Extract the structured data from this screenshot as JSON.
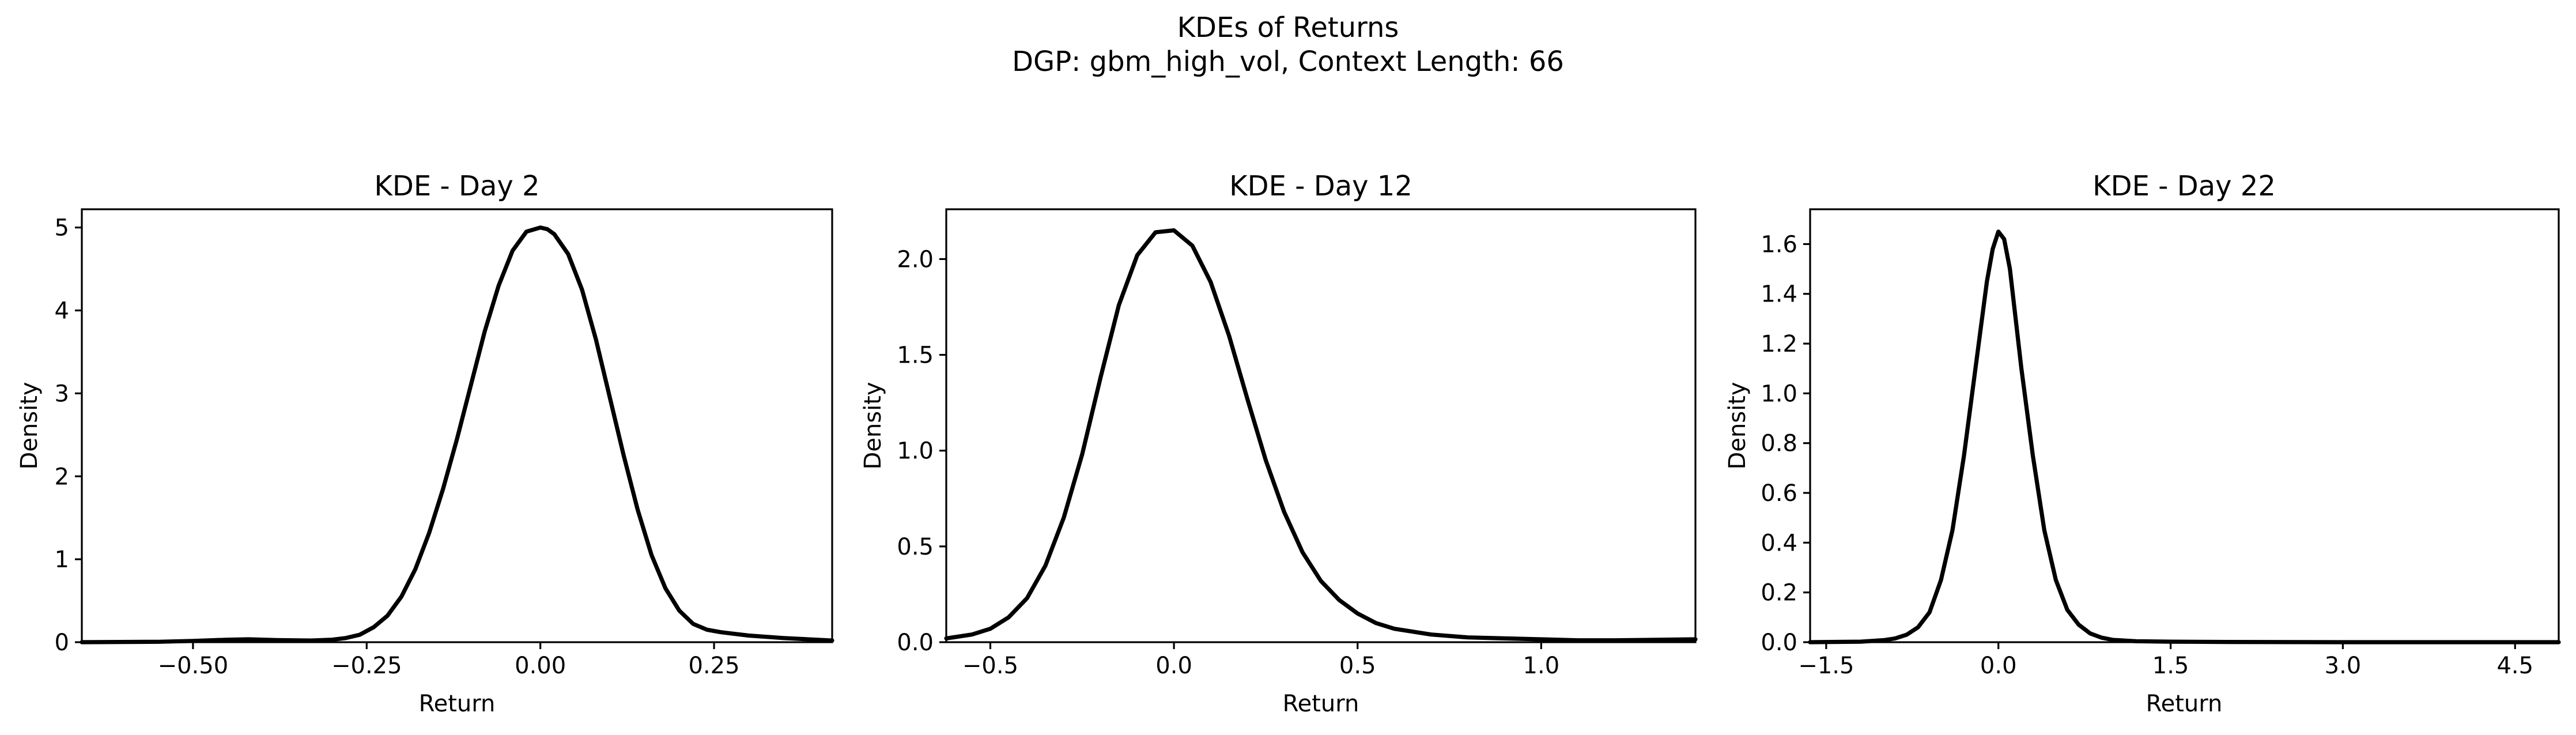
{
  "figure": {
    "suptitle_line1": "KDEs of Returns",
    "suptitle_line2": "DGP: gbm_high_vol, Context Length: 66"
  },
  "chart_data": [
    {
      "type": "line",
      "title": "KDE - Day 2",
      "xlabel": "Return",
      "ylabel": "Density",
      "xlim": [
        -0.66,
        0.42
      ],
      "ylim": [
        0,
        5.22
      ],
      "xticks": [
        -0.5,
        -0.25,
        0.0,
        0.25
      ],
      "xtick_labels": [
        "−0.50",
        "−0.25",
        "0.00",
        "0.25"
      ],
      "yticks": [
        0,
        1,
        2,
        3,
        4,
        5
      ],
      "ytick_labels": [
        "0",
        "1",
        "2",
        "3",
        "4",
        "5"
      ],
      "grid": false,
      "series": [
        {
          "color": "#000000",
          "x": [
            -0.66,
            -0.55,
            -0.5,
            -0.45,
            -0.42,
            -0.38,
            -0.33,
            -0.3,
            -0.28,
            -0.26,
            -0.24,
            -0.22,
            -0.2,
            -0.18,
            -0.16,
            -0.14,
            -0.12,
            -0.1,
            -0.08,
            -0.06,
            -0.04,
            -0.02,
            0.0,
            0.01,
            0.02,
            0.04,
            0.06,
            0.08,
            0.1,
            0.12,
            0.14,
            0.16,
            0.18,
            0.2,
            0.22,
            0.24,
            0.26,
            0.3,
            0.35,
            0.42
          ],
          "y": [
            0.0,
            0.005,
            0.015,
            0.03,
            0.035,
            0.025,
            0.02,
            0.03,
            0.05,
            0.09,
            0.18,
            0.32,
            0.55,
            0.88,
            1.32,
            1.85,
            2.45,
            3.1,
            3.75,
            4.3,
            4.72,
            4.95,
            5.0,
            4.98,
            4.92,
            4.68,
            4.25,
            3.65,
            2.95,
            2.25,
            1.6,
            1.05,
            0.65,
            0.38,
            0.22,
            0.15,
            0.12,
            0.08,
            0.05,
            0.02
          ]
        }
      ]
    },
    {
      "type": "line",
      "title": "KDE - Day 12",
      "xlabel": "Return",
      "ylabel": "Density",
      "xlim": [
        -0.62,
        1.42
      ],
      "ylim": [
        0,
        2.26
      ],
      "xticks": [
        -0.5,
        0.0,
        0.5,
        1.0
      ],
      "xtick_labels": [
        "−0.5",
        "0.0",
        "0.5",
        "1.0"
      ],
      "yticks": [
        0.0,
        0.5,
        1.0,
        1.5,
        2.0
      ],
      "ytick_labels": [
        "0.0",
        "0.5",
        "1.0",
        "1.5",
        "2.0"
      ],
      "grid": false,
      "series": [
        {
          "color": "#000000",
          "x": [
            -0.62,
            -0.55,
            -0.5,
            -0.45,
            -0.4,
            -0.35,
            -0.3,
            -0.25,
            -0.2,
            -0.15,
            -0.1,
            -0.05,
            0.0,
            0.05,
            0.1,
            0.15,
            0.2,
            0.25,
            0.3,
            0.35,
            0.4,
            0.45,
            0.5,
            0.55,
            0.6,
            0.7,
            0.8,
            0.9,
            1.0,
            1.1,
            1.2,
            1.3,
            1.42
          ],
          "y": [
            0.02,
            0.04,
            0.07,
            0.13,
            0.23,
            0.4,
            0.65,
            0.98,
            1.38,
            1.76,
            2.02,
            2.14,
            2.15,
            2.07,
            1.88,
            1.6,
            1.27,
            0.95,
            0.68,
            0.47,
            0.32,
            0.22,
            0.15,
            0.1,
            0.07,
            0.04,
            0.025,
            0.02,
            0.015,
            0.01,
            0.01,
            0.012,
            0.015
          ]
        }
      ]
    },
    {
      "type": "line",
      "title": "KDE - Day 22",
      "xlabel": "Return",
      "ylabel": "Density",
      "xlim": [
        -1.64,
        4.88
      ],
      "ylim": [
        0,
        1.74
      ],
      "xticks": [
        -1.5,
        0.0,
        1.5,
        3.0,
        4.5
      ],
      "xtick_labels": [
        "−1.5",
        "0.0",
        "1.5",
        "3.0",
        "4.5"
      ],
      "yticks": [
        0.0,
        0.2,
        0.4,
        0.6,
        0.8,
        1.0,
        1.2,
        1.4,
        1.6
      ],
      "ytick_labels": [
        "0.0",
        "0.2",
        "0.4",
        "0.6",
        "0.8",
        "1.0",
        "1.2",
        "1.4",
        "1.6"
      ],
      "grid": false,
      "series": [
        {
          "color": "#000000",
          "x": [
            -1.64,
            -1.2,
            -1.0,
            -0.9,
            -0.8,
            -0.7,
            -0.6,
            -0.5,
            -0.4,
            -0.3,
            -0.2,
            -0.1,
            -0.05,
            0.0,
            0.05,
            0.1,
            0.2,
            0.3,
            0.4,
            0.5,
            0.6,
            0.7,
            0.8,
            0.9,
            1.0,
            1.2,
            1.5,
            2.0,
            3.0,
            4.88
          ],
          "y": [
            0.0,
            0.002,
            0.008,
            0.015,
            0.03,
            0.06,
            0.12,
            0.25,
            0.45,
            0.75,
            1.1,
            1.45,
            1.58,
            1.65,
            1.62,
            1.5,
            1.1,
            0.75,
            0.45,
            0.25,
            0.13,
            0.07,
            0.035,
            0.018,
            0.009,
            0.004,
            0.002,
            0.001,
            0.0,
            0.0
          ]
        }
      ]
    }
  ]
}
